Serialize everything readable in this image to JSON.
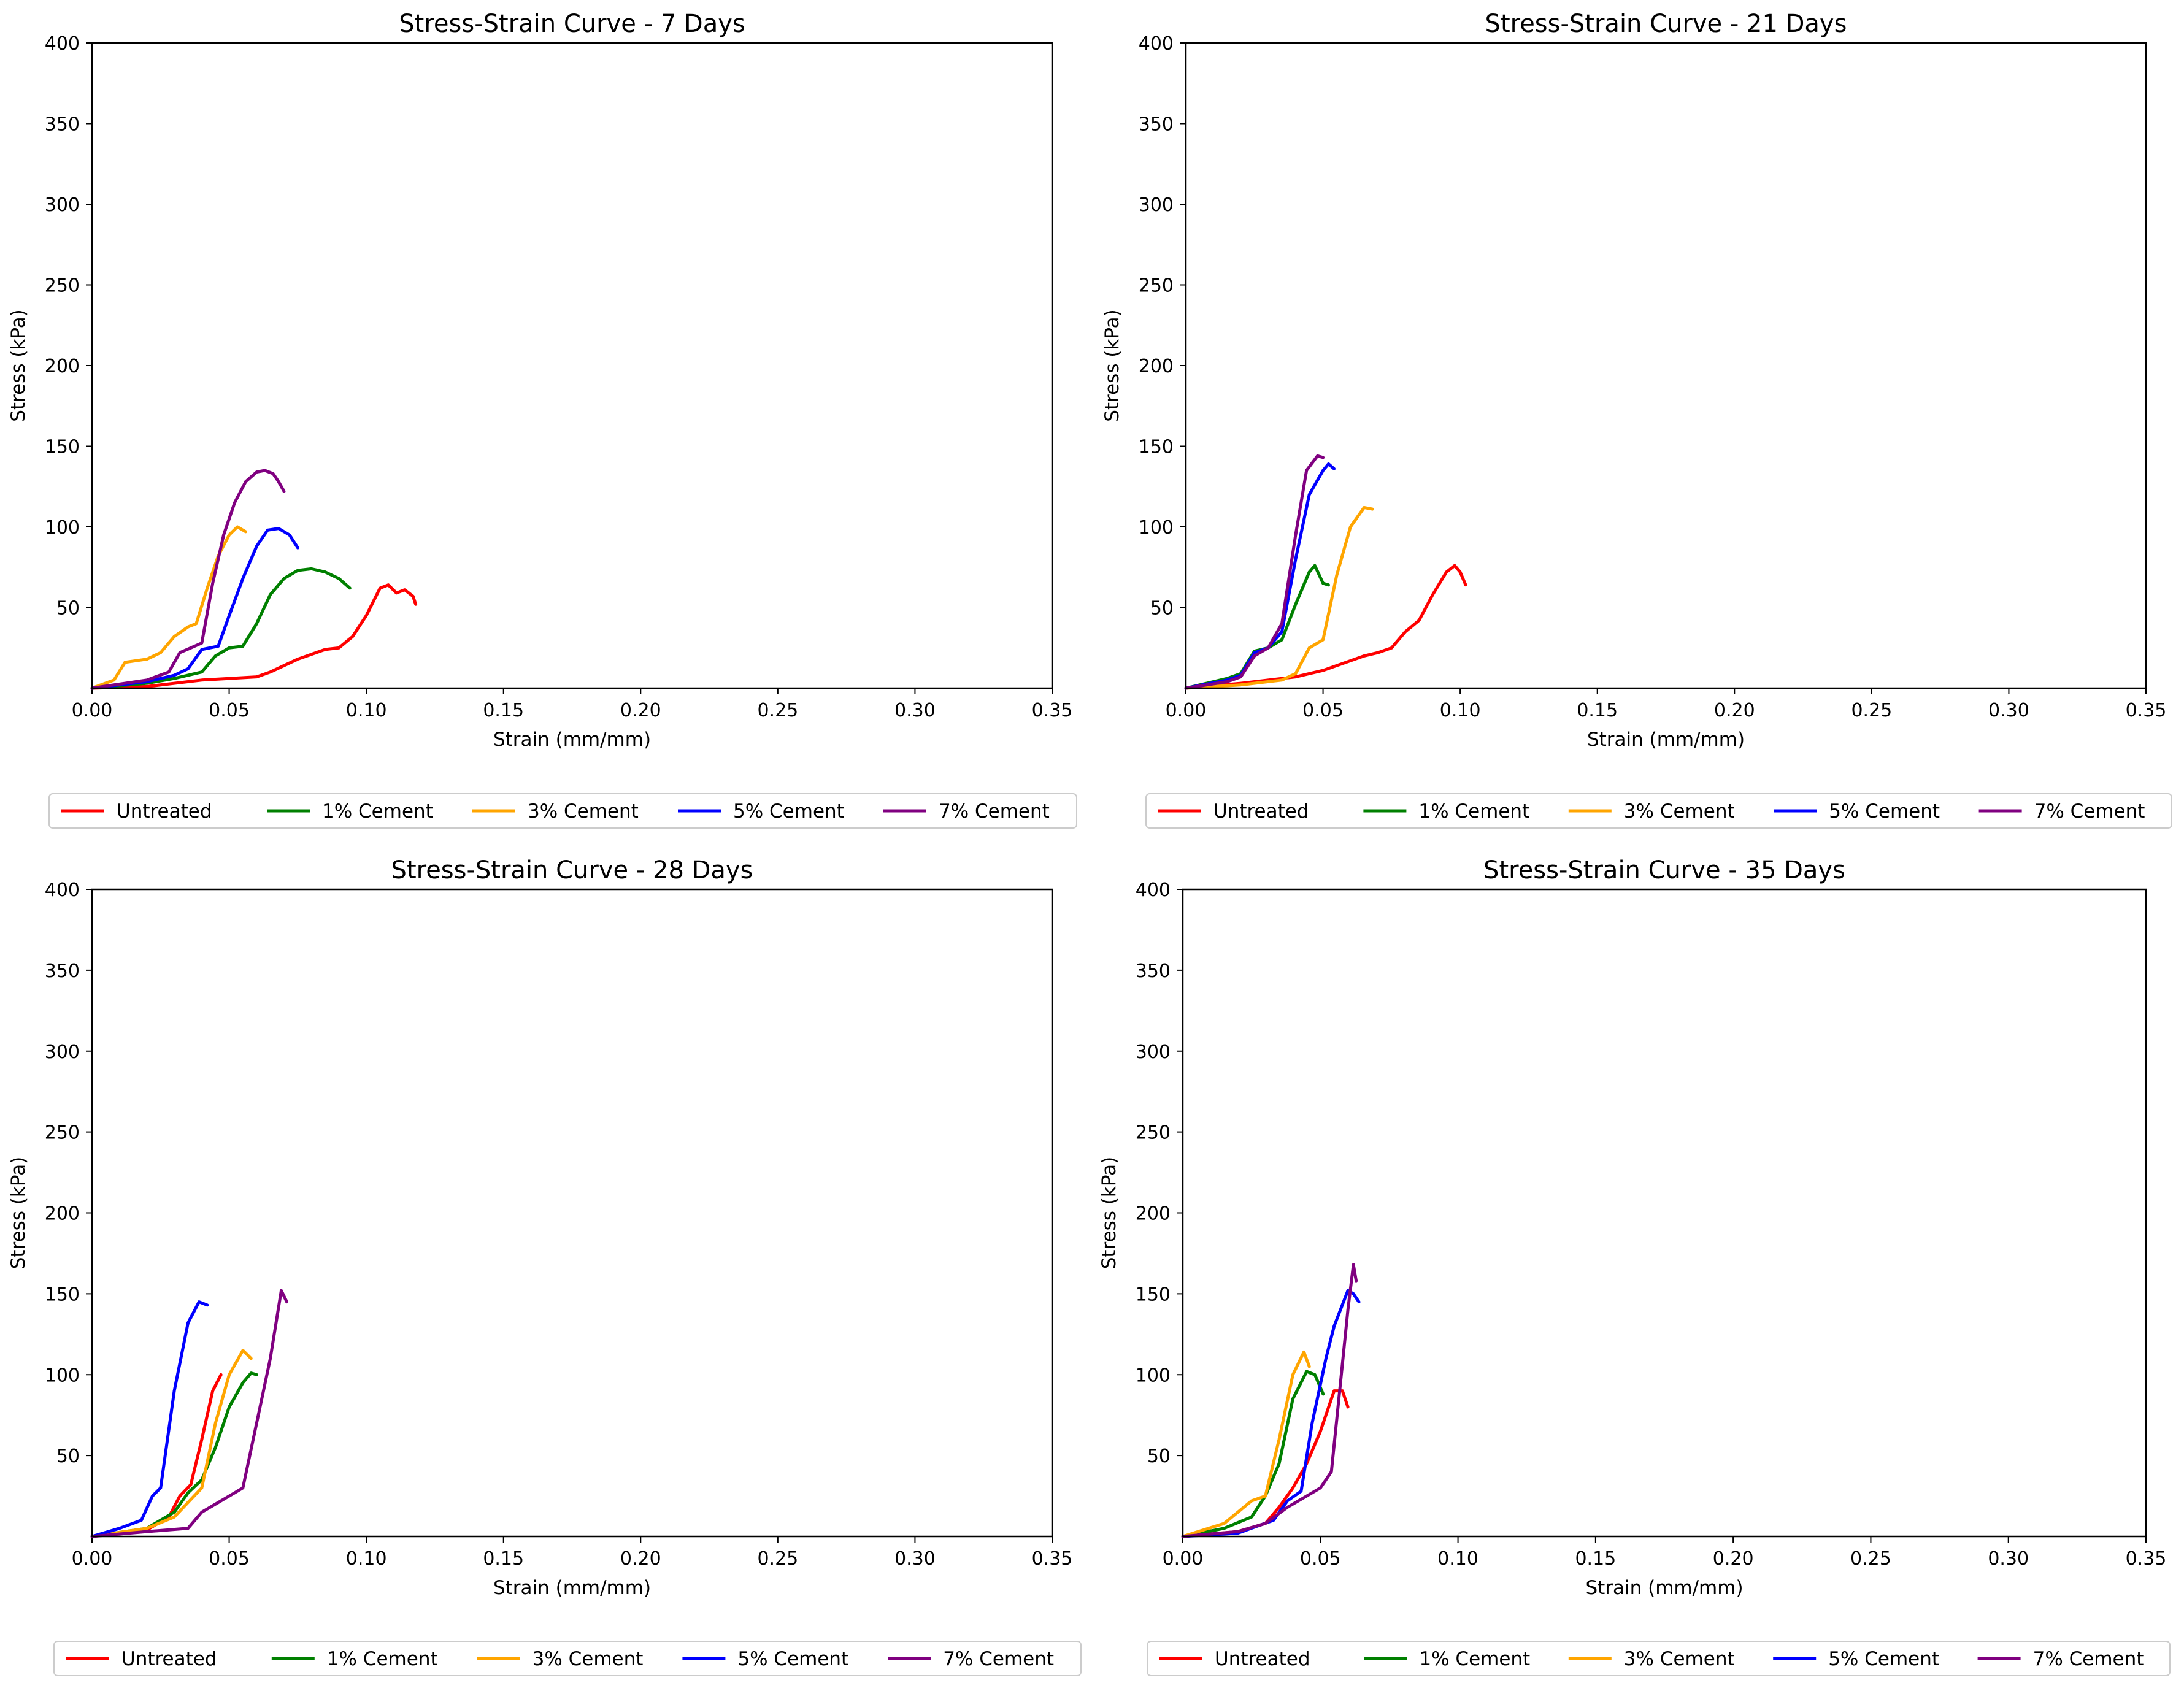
{
  "colors": {
    "Untreated": "#ff0000",
    "1% Cement": "#008000",
    "3% Cement": "#ffa500",
    "5% Cement": "#0000ff",
    "7% Cement": "#800080"
  },
  "chart_data": [
    {
      "type": "line",
      "title": "Stress-Strain Curve - 7 Days",
      "xlabel": "Strain (mm/mm)",
      "ylabel": "Stress (kPa)",
      "xlim": [
        0,
        0.35
      ],
      "ylim": [
        0,
        400
      ],
      "xticks": [
        "0.00",
        "0.05",
        "0.10",
        "0.15",
        "0.20",
        "0.25",
        "0.30",
        "0.35"
      ],
      "yticks": [
        "50",
        "100",
        "150",
        "200",
        "250",
        "300",
        "350",
        "400"
      ],
      "legend": [
        "Untreated",
        "1% Cement",
        "3% Cement",
        "5% Cement",
        "7% Cement"
      ],
      "legend_position": "below",
      "series": [
        {
          "name": "Untreated",
          "x": [
            0,
            0.02,
            0.04,
            0.06,
            0.065,
            0.075,
            0.085,
            0.09,
            0.095,
            0.1,
            0.105,
            0.108,
            0.111,
            0.114,
            0.117,
            0.118
          ],
          "y": [
            0,
            1,
            5,
            7,
            10,
            18,
            24,
            25,
            32,
            45,
            62,
            64,
            59,
            61,
            57,
            52
          ]
        },
        {
          "name": "1% Cement",
          "x": [
            0,
            0.02,
            0.03,
            0.04,
            0.045,
            0.05,
            0.055,
            0.06,
            0.065,
            0.07,
            0.075,
            0.08,
            0.085,
            0.09,
            0.094
          ],
          "y": [
            0,
            3,
            6,
            10,
            20,
            25,
            26,
            40,
            58,
            68,
            73,
            74,
            72,
            68,
            62
          ]
        },
        {
          "name": "3% Cement",
          "x": [
            0,
            0.008,
            0.012,
            0.02,
            0.025,
            0.03,
            0.035,
            0.038,
            0.042,
            0.046,
            0.05,
            0.053,
            0.056
          ],
          "y": [
            0,
            5,
            16,
            18,
            22,
            32,
            38,
            40,
            62,
            82,
            95,
            100,
            97
          ]
        },
        {
          "name": "5% Cement",
          "x": [
            0,
            0.02,
            0.03,
            0.035,
            0.04,
            0.046,
            0.05,
            0.055,
            0.06,
            0.064,
            0.068,
            0.072,
            0.075
          ],
          "y": [
            0,
            4,
            8,
            12,
            24,
            26,
            45,
            68,
            88,
            98,
            99,
            95,
            87
          ]
        },
        {
          "name": "7% Cement",
          "x": [
            0,
            0.02,
            0.028,
            0.032,
            0.036,
            0.04,
            0.044,
            0.048,
            0.052,
            0.056,
            0.06,
            0.063,
            0.066,
            0.068,
            0.07
          ],
          "y": [
            0,
            5,
            10,
            22,
            25,
            28,
            65,
            95,
            115,
            128,
            134,
            135,
            133,
            128,
            122
          ]
        }
      ]
    },
    {
      "type": "line",
      "title": "Stress-Strain Curve - 21 Days",
      "xlabel": "Strain (mm/mm)",
      "ylabel": "Stress (kPa)",
      "xlim": [
        0,
        0.35
      ],
      "ylim": [
        0,
        400
      ],
      "xticks": [
        "0.00",
        "0.05",
        "0.10",
        "0.15",
        "0.20",
        "0.25",
        "0.30",
        "0.35"
      ],
      "yticks": [
        "50",
        "100",
        "150",
        "200",
        "250",
        "300",
        "350",
        "400"
      ],
      "legend": [
        "Untreated",
        "1% Cement",
        "3% Cement",
        "5% Cement",
        "7% Cement"
      ],
      "legend_position": "below",
      "series": [
        {
          "name": "Untreated",
          "x": [
            0,
            0.02,
            0.03,
            0.04,
            0.05,
            0.06,
            0.065,
            0.07,
            0.075,
            0.08,
            0.085,
            0.09,
            0.095,
            0.098,
            0.1,
            0.102
          ],
          "y": [
            0,
            3,
            5,
            7,
            11,
            17,
            20,
            22,
            25,
            35,
            42,
            58,
            72,
            76,
            72,
            64
          ]
        },
        {
          "name": "1% Cement",
          "x": [
            0,
            0.015,
            0.02,
            0.025,
            0.03,
            0.035,
            0.04,
            0.045,
            0.047,
            0.05,
            0.052
          ],
          "y": [
            0,
            6,
            9,
            23,
            25,
            30,
            52,
            72,
            76,
            65,
            64
          ]
        },
        {
          "name": "3% Cement",
          "x": [
            0,
            0.02,
            0.035,
            0.04,
            0.045,
            0.05,
            0.055,
            0.06,
            0.065,
            0.068
          ],
          "y": [
            0,
            2,
            5,
            9,
            25,
            30,
            70,
            100,
            112,
            111
          ]
        },
        {
          "name": "5% Cement",
          "x": [
            0,
            0.015,
            0.02,
            0.025,
            0.03,
            0.035,
            0.04,
            0.045,
            0.05,
            0.052,
            0.054
          ],
          "y": [
            0,
            5,
            8,
            22,
            25,
            35,
            80,
            120,
            135,
            139,
            136
          ]
        },
        {
          "name": "7% Cement",
          "x": [
            0,
            0.015,
            0.02,
            0.025,
            0.03,
            0.035,
            0.04,
            0.044,
            0.048,
            0.05
          ],
          "y": [
            0,
            4,
            7,
            20,
            25,
            40,
            95,
            135,
            144,
            143
          ]
        }
      ]
    },
    {
      "type": "line",
      "title": "Stress-Strain Curve - 28 Days",
      "xlabel": "Strain (mm/mm)",
      "ylabel": "Stress (kPa)",
      "xlim": [
        0,
        0.35
      ],
      "ylim": [
        0,
        400
      ],
      "xticks": [
        "0.00",
        "0.05",
        "0.10",
        "0.15",
        "0.20",
        "0.25",
        "0.30",
        "0.35"
      ],
      "yticks": [
        "50",
        "100",
        "150",
        "200",
        "250",
        "300",
        "350",
        "400"
      ],
      "legend": [
        "Untreated",
        "1% Cement",
        "3% Cement",
        "5% Cement",
        "7% Cement"
      ],
      "legend_position": "below",
      "series": [
        {
          "name": "Untreated",
          "x": [
            0,
            0.02,
            0.028,
            0.032,
            0.036,
            0.04,
            0.044,
            0.047
          ],
          "y": [
            0,
            4,
            12,
            25,
            32,
            60,
            90,
            100
          ]
        },
        {
          "name": "1% Cement",
          "x": [
            0,
            0.02,
            0.03,
            0.035,
            0.04,
            0.045,
            0.05,
            0.055,
            0.058,
            0.06
          ],
          "y": [
            0,
            5,
            15,
            27,
            35,
            55,
            80,
            95,
            101,
            100
          ]
        },
        {
          "name": "3% Cement",
          "x": [
            0,
            0.02,
            0.03,
            0.04,
            0.045,
            0.05,
            0.055,
            0.058
          ],
          "y": [
            0,
            5,
            12,
            30,
            70,
            100,
            115,
            110
          ]
        },
        {
          "name": "5% Cement",
          "x": [
            0,
            0.01,
            0.018,
            0.022,
            0.025,
            0.03,
            0.035,
            0.039,
            0.042
          ],
          "y": [
            0,
            5,
            10,
            25,
            30,
            90,
            132,
            145,
            143
          ]
        },
        {
          "name": "7% Cement",
          "x": [
            0,
            0.02,
            0.035,
            0.04,
            0.045,
            0.05,
            0.055,
            0.06,
            0.065,
            0.069,
            0.071
          ],
          "y": [
            0,
            3,
            5,
            15,
            20,
            25,
            30,
            70,
            110,
            152,
            145
          ]
        }
      ]
    },
    {
      "type": "line",
      "title": "Stress-Strain Curve - 35 Days",
      "xlabel": "Strain (mm/mm)",
      "ylabel": "Stress (kPa)",
      "xlim": [
        0,
        0.35
      ],
      "ylim": [
        0,
        400
      ],
      "xticks": [
        "0.00",
        "0.05",
        "0.10",
        "0.15",
        "0.20",
        "0.25",
        "0.30",
        "0.35"
      ],
      "yticks": [
        "50",
        "100",
        "150",
        "200",
        "250",
        "300",
        "350",
        "400"
      ],
      "legend": [
        "Untreated",
        "1% Cement",
        "3% Cement",
        "5% Cement",
        "7% Cement"
      ],
      "legend_position": "below",
      "series": [
        {
          "name": "Untreated",
          "x": [
            0,
            0.02,
            0.03,
            0.035,
            0.04,
            0.045,
            0.05,
            0.055,
            0.058,
            0.06
          ],
          "y": [
            0,
            3,
            8,
            18,
            30,
            45,
            65,
            90,
            90,
            80
          ]
        },
        {
          "name": "1% Cement",
          "x": [
            0,
            0.015,
            0.025,
            0.03,
            0.035,
            0.04,
            0.045,
            0.048,
            0.051
          ],
          "y": [
            0,
            5,
            12,
            25,
            45,
            85,
            102,
            100,
            88
          ]
        },
        {
          "name": "3% Cement",
          "x": [
            0,
            0.015,
            0.025,
            0.03,
            0.035,
            0.04,
            0.044,
            0.046
          ],
          "y": [
            0,
            8,
            22,
            25,
            60,
            100,
            114,
            105
          ]
        },
        {
          "name": "5% Cement",
          "x": [
            0,
            0.02,
            0.033,
            0.038,
            0.043,
            0.047,
            0.052,
            0.055,
            0.06,
            0.062,
            0.064
          ],
          "y": [
            0,
            2,
            10,
            22,
            28,
            70,
            110,
            130,
            152,
            150,
            145
          ]
        },
        {
          "name": "7% Cement",
          "x": [
            0,
            0.02,
            0.03,
            0.038,
            0.045,
            0.05,
            0.054,
            0.057,
            0.06,
            0.062,
            0.063
          ],
          "y": [
            0,
            3,
            8,
            18,
            25,
            30,
            40,
            90,
            140,
            168,
            158
          ]
        }
      ]
    }
  ]
}
